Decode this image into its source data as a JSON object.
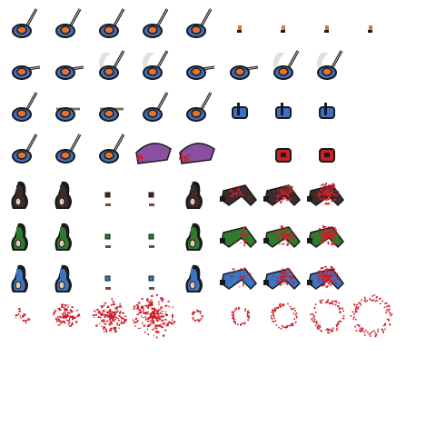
{
  "sheet": {
    "columns": 10,
    "rows": [
      {
        "name": "player-sword-swing-row",
        "frames": [
          "sword-up",
          "sword-up",
          "sword-up",
          "sword-up",
          "sword-up",
          "blood-drop",
          "blood-drop",
          "blood-drop",
          "blood-drop",
          "empty"
        ]
      },
      {
        "name": "player-sword-slash-row",
        "frames": [
          "sword-right",
          "sword-right",
          "slash-trail",
          "slash-trail",
          "sword-right",
          "sword-right",
          "slash-trail",
          "slash-trail",
          "empty",
          "empty"
        ]
      },
      {
        "name": "player-sword-thrust-row",
        "frames": [
          "sword-up",
          "sword-flat",
          "sword-flat",
          "sword-up",
          "sword-up",
          "small-body",
          "small-body",
          "small-body",
          "empty",
          "empty"
        ]
      },
      {
        "name": "player-death-row",
        "frames": [
          "sword-up",
          "sword-up",
          "sword-up",
          "purple-corpse",
          "purple-corpse",
          "empty",
          "red-chest",
          "red-chest",
          "empty",
          "empty"
        ]
      },
      {
        "name": "dark-enemy-row",
        "frames": [
          "enemy-standing",
          "enemy-standing",
          "enemy-small",
          "enemy-small",
          "enemy-standing",
          "enemy-corpse-bloody",
          "enemy-corpse-bloody",
          "enemy-corpse-bloody",
          "empty",
          "empty"
        ]
      },
      {
        "name": "green-enemy-row",
        "frames": [
          "enemy-standing",
          "enemy-standing",
          "enemy-small",
          "enemy-small",
          "enemy-standing",
          "enemy-corpse-bloody",
          "enemy-corpse-bloody",
          "enemy-corpse-bloody",
          "empty",
          "empty"
        ]
      },
      {
        "name": "blue-enemy-row",
        "frames": [
          "enemy-standing",
          "enemy-standing",
          "enemy-small",
          "enemy-small",
          "enemy-standing",
          "enemy-corpse-bloody",
          "enemy-corpse-bloody",
          "enemy-corpse-bloody",
          "empty",
          "empty"
        ]
      },
      {
        "name": "blood-splatter-row",
        "frames": [
          "blood-burst",
          "blood-burst",
          "blood-burst",
          "blood-burst",
          "blood-ring",
          "blood-ring",
          "blood-ring",
          "blood-ring",
          "blood-ring",
          "empty"
        ]
      }
    ],
    "colors": {
      "outline": "#1a1a1a",
      "player_blue": "#3f6fc4",
      "player_purple": "#8a4fa0",
      "player_orange": "#e5712a",
      "blood": "#cc1f2a",
      "enemy_dark": "#3d2b2b",
      "enemy_green": "#2f7a2f",
      "enemy_blue": "#3e74c2",
      "steel": "#b8b8b8",
      "trail": "#d8d8d8"
    }
  }
}
